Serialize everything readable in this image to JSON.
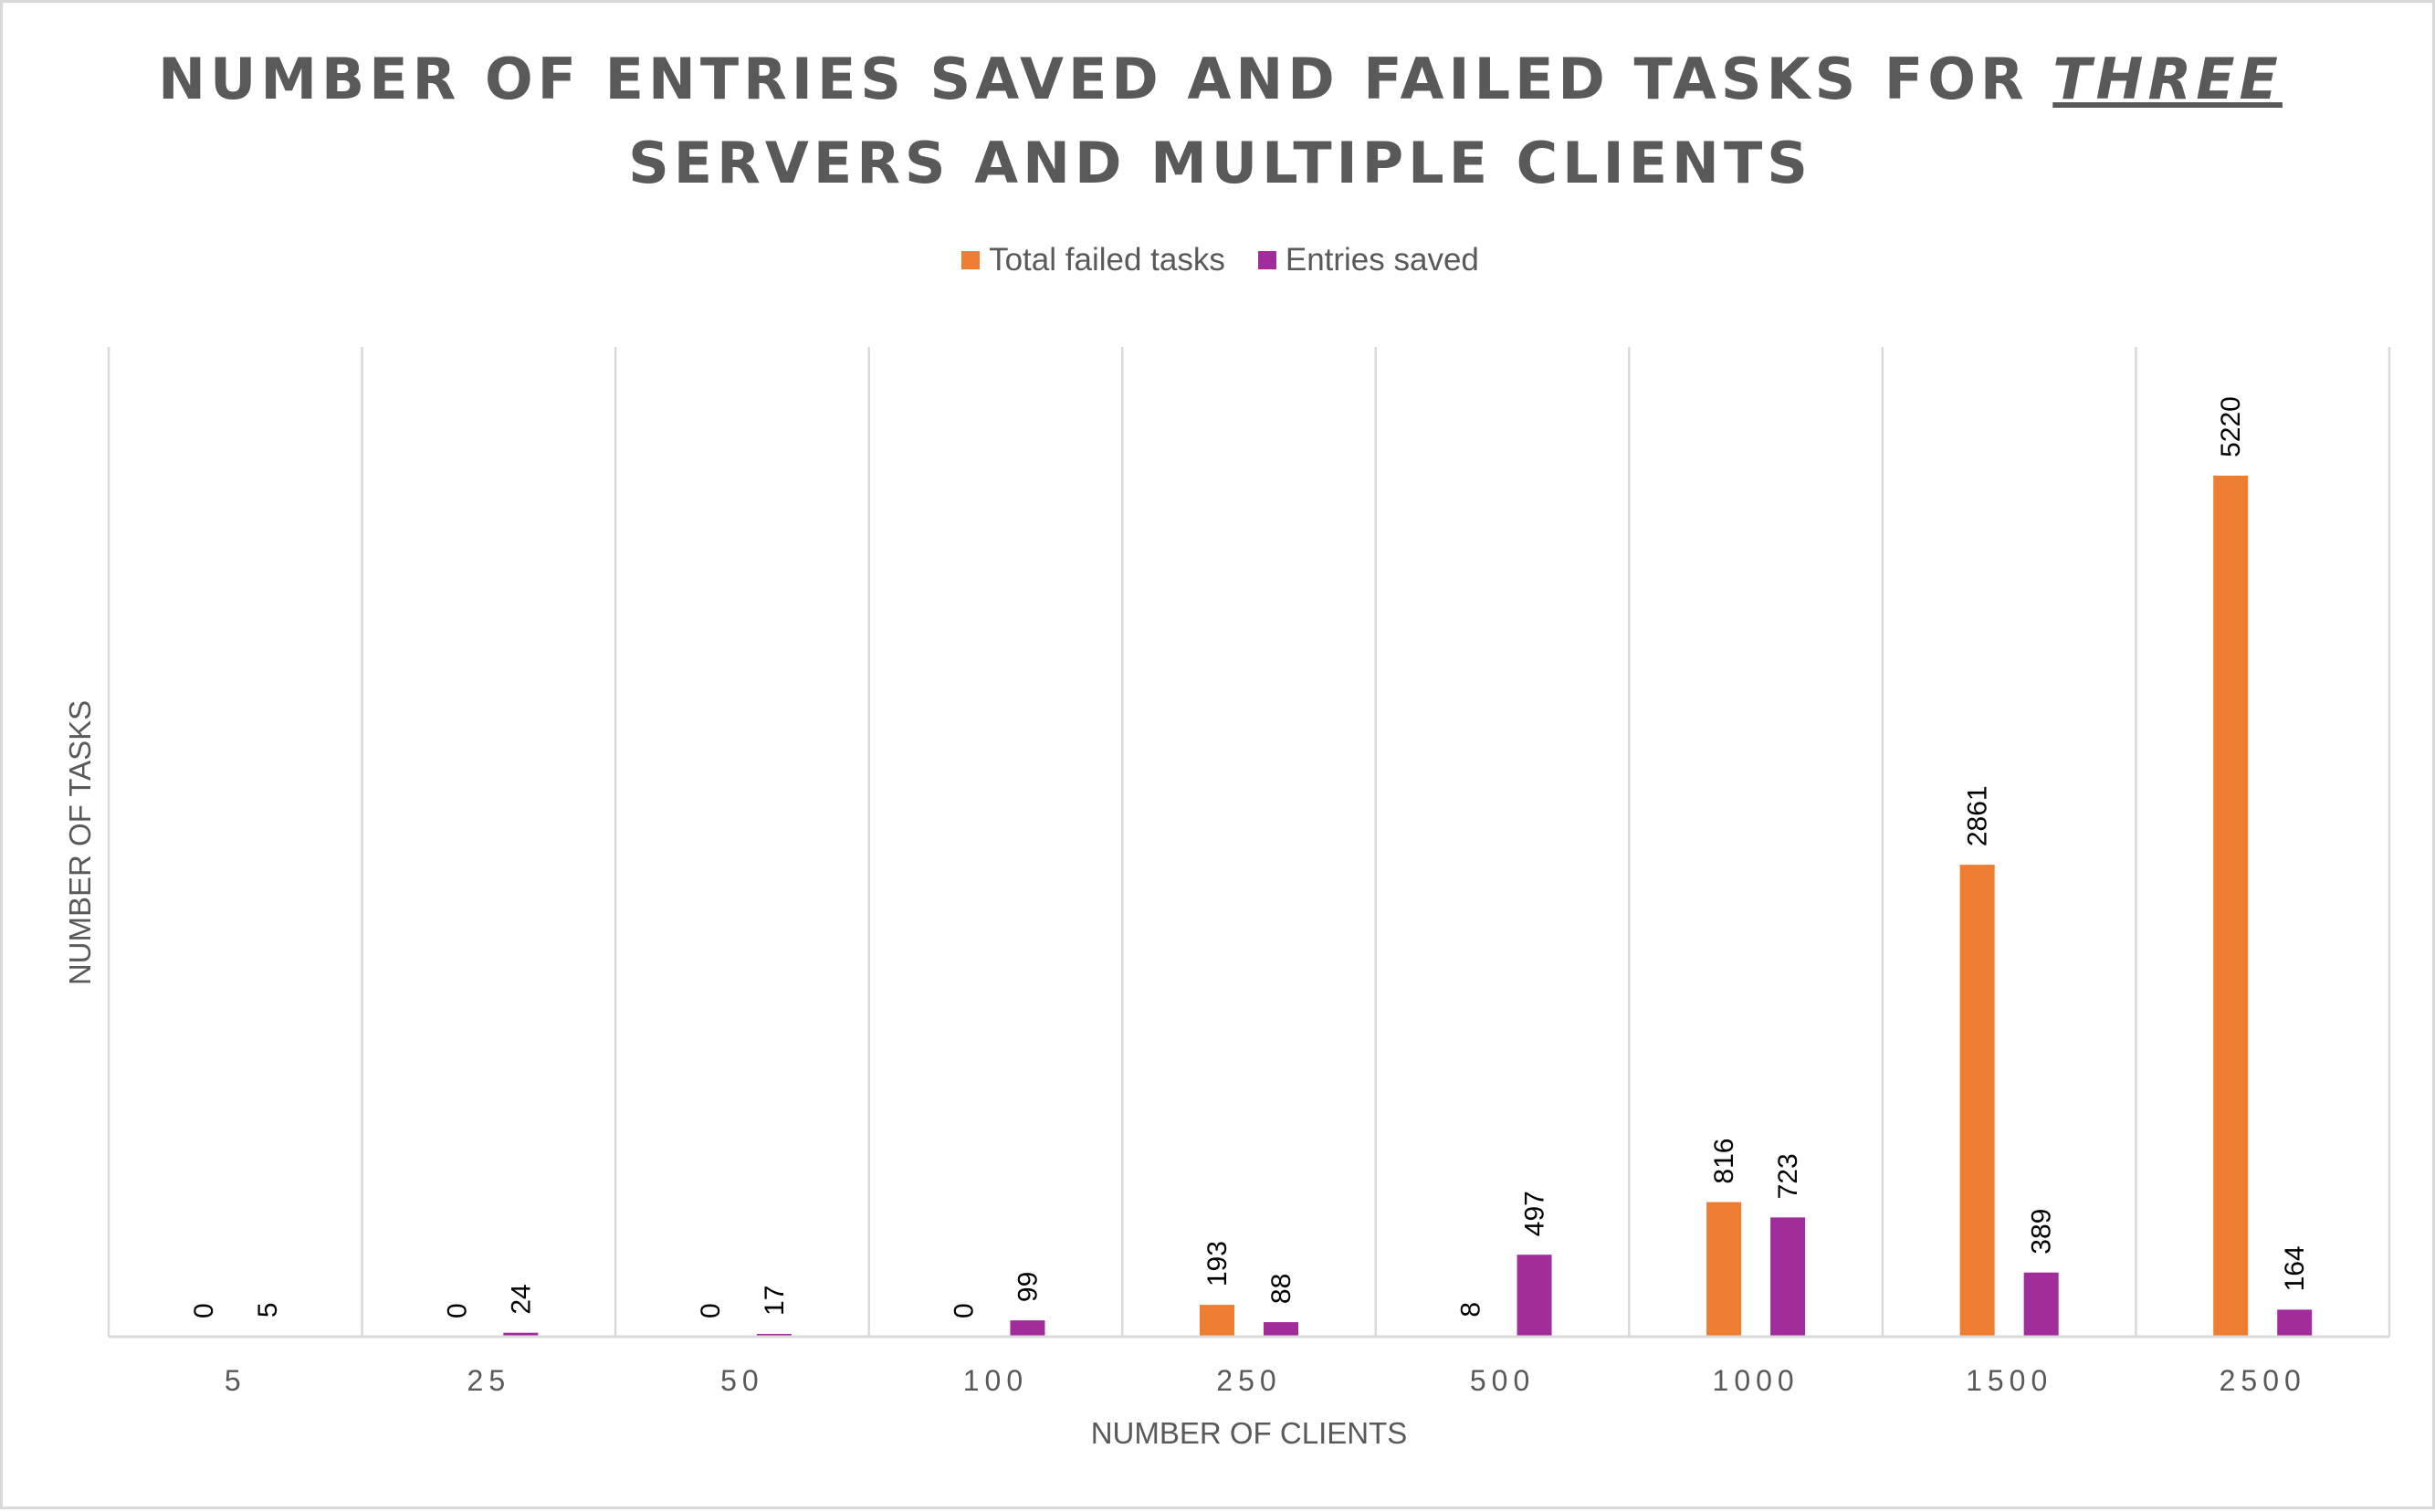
{
  "chart_data": {
    "type": "bar",
    "title_parts": {
      "before": "NUMBER OF ENTRIES SAVED AND FAILED TASKS FOR ",
      "emphasis": "THREE",
      "after": "SERVERS AND MULTIPLE CLIENTS"
    },
    "xlabel": "NUMBER OF CLIENTS",
    "ylabel": "NUMBER OF TASKS",
    "categories": [
      "5",
      "25",
      "50",
      "100",
      "250",
      "500",
      "1000",
      "1500",
      "2500"
    ],
    "series": [
      {
        "name": "Total failed tasks",
        "color": "#ED7D31",
        "values": [
          0,
          0,
          0,
          0,
          193,
          8,
          816,
          2861,
          5220
        ]
      },
      {
        "name": "Entries saved",
        "color": "#A12D9A",
        "values": [
          5,
          24,
          17,
          99,
          88,
          497,
          723,
          389,
          164
        ]
      }
    ],
    "ylim": [
      0,
      6000
    ],
    "grid": "vertical",
    "legend_position": "top",
    "data_labels": true
  }
}
